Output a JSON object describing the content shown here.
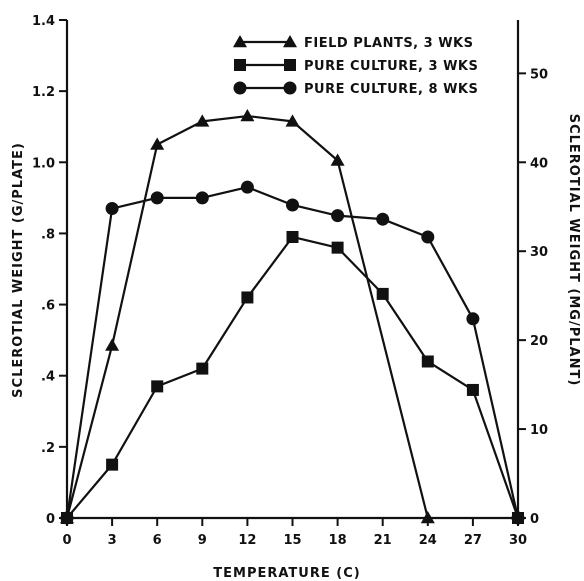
{
  "chart_data": {
    "type": "line",
    "xlabel": "TEMPERATURE (C)",
    "ylabel_left": "SCLEROTIAL WEIGHT (G/PLATE)",
    "ylabel_right": "SCLEROTIAL WEIGHT (MG/PLANT)",
    "xlim": [
      0,
      30
    ],
    "ylim_left": [
      0,
      1.4
    ],
    "ylim_right": [
      0,
      56
    ],
    "x_ticks": [
      0,
      3,
      6,
      9,
      12,
      15,
      18,
      21,
      24,
      27,
      30
    ],
    "x_tick_labels": [
      "0",
      "3",
      "6",
      "9",
      "12",
      "15",
      "18",
      "21",
      "24",
      "27",
      "30"
    ],
    "y_left_ticks": [
      0,
      0.2,
      0.4,
      0.6,
      0.8,
      1.0,
      1.2,
      1.4
    ],
    "y_left_tick_labels": [
      "0",
      ".2",
      ".4",
      ".6",
      ".8",
      "1.0",
      "1.2",
      "1.4"
    ],
    "y_right_ticks": [
      0,
      10,
      20,
      30,
      40,
      50
    ],
    "y_right_tick_labels": [
      "0",
      "10",
      "20",
      "30",
      "40",
      "50"
    ],
    "grid": false,
    "legend_position": "top-right",
    "series": [
      {
        "name": "FIELD PLANTS, 3 WKS",
        "marker": "triangle",
        "axis": "right",
        "x": [
          0,
          3,
          6,
          9,
          12,
          15,
          18,
          24
        ],
        "y": [
          0,
          19.4,
          42,
          44.6,
          45.2,
          44.6,
          40.2,
          0
        ]
      },
      {
        "name": "PURE CULTURE, 3 WKS",
        "marker": "square",
        "axis": "left",
        "x": [
          0,
          3,
          6,
          9,
          12,
          15,
          18,
          21,
          24,
          27,
          30
        ],
        "y": [
          0,
          0.15,
          0.37,
          0.42,
          0.62,
          0.79,
          0.76,
          0.63,
          0.44,
          0.36,
          0
        ]
      },
      {
        "name": "PURE CULTURE, 8 WKS",
        "marker": "circle",
        "axis": "left",
        "x": [
          0,
          3,
          6,
          9,
          12,
          15,
          18,
          21,
          24,
          27,
          30
        ],
        "y": [
          0,
          0.87,
          0.9,
          0.9,
          0.93,
          0.88,
          0.85,
          0.84,
          0.79,
          0.56,
          0
        ]
      }
    ]
  }
}
